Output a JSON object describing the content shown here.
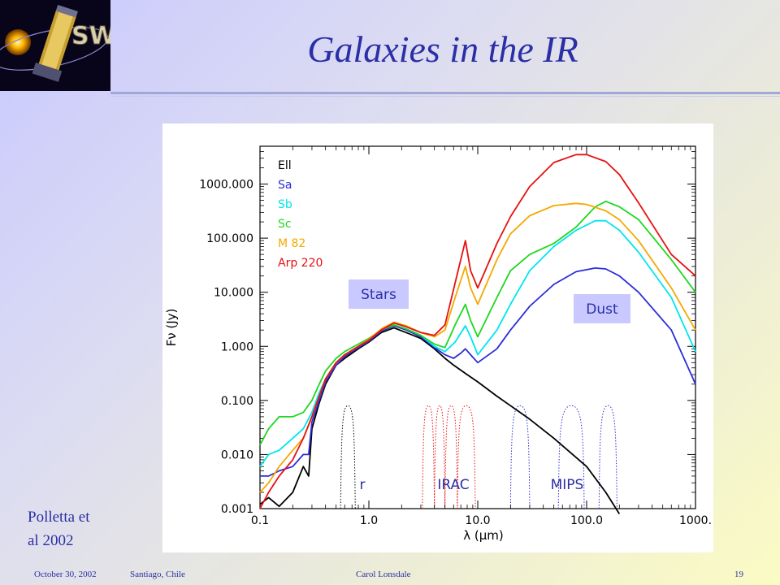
{
  "slide": {
    "logo_text": "SWIRE",
    "title": "Galaxies in the IR",
    "citation_line1": "Polletta et",
    "citation_line2": "al 2002"
  },
  "footer": {
    "date": "October 30, 2002",
    "location": "Santiago, Chile",
    "author": "Carol Lonsdale",
    "page": "19"
  },
  "colors": {
    "title": "#2b2fa6",
    "Ell": "#000000",
    "Sa": "#2c2cd8",
    "Sb": "#00e5ee",
    "Sc": "#1ed81e",
    "M 82": "#f5a800",
    "Arp 220": "#e81010"
  },
  "chart_data": {
    "type": "line",
    "xscale": "log",
    "yscale": "log",
    "xlim": [
      0.1,
      1000
    ],
    "ylim": [
      0.001,
      5000
    ],
    "xlabel": "λ (μm)",
    "ylabel": "Fν (Jy)",
    "xticks": [
      "0.1",
      "1.0",
      "10.0",
      "100.0",
      "1000."
    ],
    "yticks": [
      "0.001",
      "0.010",
      "0.100",
      "1.000",
      "10.000",
      "100.000",
      "1000.000"
    ],
    "legend_position": "top-left",
    "annotations": [
      "Stars",
      "Dust",
      "r",
      "IRAC",
      "MIPS"
    ],
    "series": [
      {
        "name": "Ell",
        "x": [
          0.1,
          0.12,
          0.15,
          0.2,
          0.25,
          0.28,
          0.3,
          0.35,
          0.4,
          0.5,
          0.6,
          0.8,
          1.0,
          1.3,
          1.7,
          2.2,
          3.0,
          4.0,
          5.0,
          6.0,
          8.0,
          10,
          15,
          20,
          30,
          50,
          100,
          150,
          200
        ],
        "y": [
          0.0012,
          0.0016,
          0.0011,
          0.002,
          0.006,
          0.004,
          0.03,
          0.09,
          0.2,
          0.45,
          0.6,
          0.9,
          1.2,
          1.8,
          2.2,
          1.8,
          1.4,
          0.9,
          0.6,
          0.45,
          0.3,
          0.22,
          0.12,
          0.08,
          0.045,
          0.02,
          0.006,
          0.002,
          0.0008
        ]
      },
      {
        "name": "Sa",
        "x": [
          0.1,
          0.12,
          0.15,
          0.2,
          0.25,
          0.28,
          0.3,
          0.35,
          0.4,
          0.5,
          0.6,
          0.8,
          1.0,
          1.3,
          1.7,
          2.2,
          3.0,
          4.0,
          5.0,
          6.0,
          7.0,
          7.7,
          8.6,
          10,
          15,
          20,
          30,
          50,
          80,
          120,
          150,
          200,
          300,
          600,
          1000
        ],
        "y": [
          0.004,
          0.004,
          0.005,
          0.006,
          0.01,
          0.01,
          0.04,
          0.1,
          0.22,
          0.45,
          0.65,
          0.95,
          1.25,
          1.9,
          2.4,
          2.0,
          1.5,
          0.95,
          0.7,
          0.6,
          0.75,
          0.9,
          0.7,
          0.5,
          0.9,
          2.0,
          5.5,
          14,
          24,
          28,
          27,
          20,
          10,
          2.0,
          0.2
        ]
      },
      {
        "name": "Sb",
        "x": [
          0.1,
          0.12,
          0.15,
          0.2,
          0.25,
          0.3,
          0.35,
          0.4,
          0.5,
          0.6,
          0.8,
          1.0,
          1.3,
          1.7,
          2.2,
          3.0,
          4.0,
          5.0,
          6.2,
          7.7,
          8.6,
          10,
          15,
          20,
          30,
          50,
          80,
          120,
          150,
          200,
          300,
          600,
          1000
        ],
        "y": [
          0.006,
          0.01,
          0.012,
          0.02,
          0.03,
          0.06,
          0.14,
          0.25,
          0.5,
          0.7,
          1.0,
          1.3,
          2.0,
          2.5,
          2.1,
          1.6,
          1.0,
          0.8,
          1.2,
          2.4,
          1.5,
          0.7,
          2.0,
          6.0,
          25,
          70,
          140,
          210,
          210,
          140,
          55,
          8,
          0.8
        ]
      },
      {
        "name": "Sc",
        "x": [
          0.1,
          0.12,
          0.15,
          0.2,
          0.25,
          0.3,
          0.35,
          0.4,
          0.5,
          0.6,
          0.8,
          1.0,
          1.3,
          1.7,
          2.2,
          3.0,
          4.0,
          5.0,
          6.2,
          7.7,
          8.6,
          10,
          15,
          20,
          30,
          50,
          80,
          120,
          150,
          200,
          300,
          600,
          1000
        ],
        "y": [
          0.015,
          0.03,
          0.05,
          0.05,
          0.06,
          0.1,
          0.2,
          0.35,
          0.6,
          0.8,
          1.1,
          1.4,
          2.0,
          2.5,
          2.1,
          1.6,
          1.1,
          0.95,
          2.5,
          6.0,
          3.0,
          1.5,
          8.0,
          25,
          50,
          80,
          160,
          380,
          480,
          380,
          220,
          40,
          10
        ]
      },
      {
        "name": "M 82",
        "x": [
          0.1,
          0.12,
          0.15,
          0.2,
          0.25,
          0.3,
          0.35,
          0.4,
          0.5,
          0.6,
          0.8,
          1.0,
          1.3,
          1.7,
          2.2,
          3.0,
          4.0,
          5.0,
          6.2,
          7.7,
          8.6,
          10,
          15,
          20,
          30,
          50,
          80,
          100,
          150,
          200,
          300,
          600,
          1000
        ],
        "y": [
          0.002,
          0.003,
          0.006,
          0.012,
          0.02,
          0.05,
          0.12,
          0.25,
          0.5,
          0.7,
          1.0,
          1.35,
          2.1,
          2.8,
          2.4,
          1.8,
          1.5,
          2.0,
          8.0,
          30,
          12,
          6.0,
          40,
          120,
          260,
          400,
          440,
          420,
          320,
          220,
          90,
          12,
          2.0
        ]
      },
      {
        "name": "Arp 220",
        "x": [
          0.1,
          0.12,
          0.15,
          0.2,
          0.25,
          0.3,
          0.35,
          0.4,
          0.5,
          0.6,
          0.8,
          1.0,
          1.3,
          1.7,
          2.2,
          3.0,
          4.0,
          5.0,
          6.2,
          7.7,
          8.6,
          10,
          15,
          20,
          30,
          50,
          80,
          100,
          150,
          200,
          300,
          600,
          1000
        ],
        "y": [
          0.001,
          0.002,
          0.004,
          0.008,
          0.02,
          0.05,
          0.12,
          0.25,
          0.5,
          0.7,
          1.0,
          1.3,
          2.0,
          2.7,
          2.3,
          1.8,
          1.6,
          2.5,
          15,
          90,
          25,
          12,
          80,
          250,
          900,
          2500,
          3500,
          3500,
          2600,
          1500,
          450,
          50,
          20
        ]
      }
    ]
  }
}
